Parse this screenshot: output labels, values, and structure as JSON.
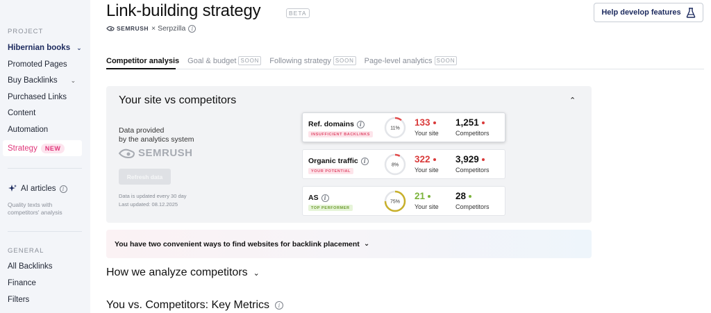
{
  "sidebar": {
    "project_label": "PROJECT",
    "project_name": "Hibernian books",
    "items": [
      {
        "label": "Promoted Pages"
      },
      {
        "label": "Buy Backlinks"
      },
      {
        "label": "Purchased Links"
      },
      {
        "label": "Content"
      },
      {
        "label": "Automation"
      },
      {
        "label": "Strategy",
        "badge": "NEW"
      }
    ],
    "ai_articles": {
      "label": "AI articles",
      "desc": "Quality texts with competitors' analysis"
    },
    "general_label": "GENERAL",
    "general_items": [
      {
        "label": "All Backlinks"
      },
      {
        "label": "Finance"
      },
      {
        "label": "Filters"
      }
    ]
  },
  "header": {
    "title": "Link-building strategy",
    "beta": "BETA",
    "semrush": "SEMRUSH",
    "partner": "× Serpzilla",
    "help_button": "Help develop features"
  },
  "tabs": [
    {
      "label": "Competitor analysis",
      "active": true
    },
    {
      "label": "Goal & budget",
      "soon": "SOON"
    },
    {
      "label": "Following strategy",
      "soon": "SOON"
    },
    {
      "label": "Page-level analytics",
      "soon": "SOON"
    }
  ],
  "panel": {
    "title": "Your site vs competitors",
    "data_provided_1": "Data provided",
    "data_provided_2": "by the analytics system",
    "semrush_logo": "SEMRUSH",
    "refresh_button": "Refresh data",
    "update_note": "Data is updated every 30 day",
    "last_updated": "Last updated: 08.12.2025",
    "metrics": [
      {
        "name": "Ref. domains",
        "tag": "INSUFFICIENT BACKLINKS",
        "tag_color": "red",
        "percent": 11,
        "percent_label": "11%",
        "your": "133",
        "your_label": "Your site",
        "comp": "1,251",
        "comp_label": "Competitors",
        "value_color": "#d93a3a",
        "ring_color": "#e24b4b"
      },
      {
        "name": "Organic traffic",
        "tag": "YOUR POTENTIAL",
        "tag_color": "red",
        "percent": 8,
        "percent_label": "8%",
        "your": "322",
        "your_label": "Your site",
        "comp": "3,929",
        "comp_label": "Competitors",
        "value_color": "#d93a3a",
        "ring_color": "#e24b4b"
      },
      {
        "name": "AS",
        "tag": "TOP PERFORMER",
        "tag_color": "green",
        "percent": 75,
        "percent_label": "75%",
        "your": "21",
        "your_label": "Your site",
        "comp": "28",
        "comp_label": "Competitors",
        "value_color": "#7bb33a",
        "ring_color": "#c8b02a"
      }
    ]
  },
  "banner": {
    "text": "You have two convenient ways to find websites for backlink placement"
  },
  "sections": {
    "how": "How we analyze competitors",
    "key_metrics": "You vs. Competitors: Key Metrics"
  },
  "colors": {
    "accent": "#e0367a",
    "navy": "#1c2a5e",
    "red": "#d93a3a",
    "green": "#7bb33a"
  }
}
